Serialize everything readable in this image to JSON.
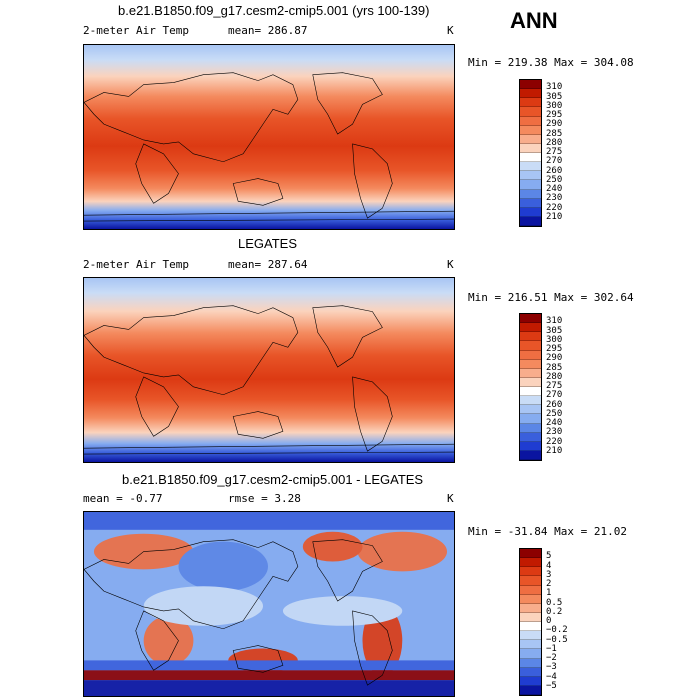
{
  "season": "ANN",
  "panels": [
    {
      "id": "model",
      "title": "b.e21.B1850.f09_g17.cesm2-cmip5.001 (yrs 100-139)",
      "left_label": "2-meter Air Temp",
      "center_label": "mean= 286.87",
      "right_label": "K",
      "minmax": "Min = 219.38 Max = 304.08",
      "colorbar": {
        "labels": [
          "310",
          "305",
          "300",
          "295",
          "290",
          "285",
          "280",
          "275",
          "270",
          "260",
          "250",
          "240",
          "230",
          "220",
          "210"
        ],
        "colors": [
          "#8c0000",
          "#c11a00",
          "#dc3a13",
          "#e85528",
          "#ef6e42",
          "#f48a5e",
          "#f8ad8c",
          "#fbd3bd",
          "#ffffff",
          "#c9dcf6",
          "#a8c5f4",
          "#86acf0",
          "#5b86e6",
          "#3a5fdc",
          "#1f3cd1",
          "#0a14a0"
        ]
      }
    },
    {
      "id": "obs",
      "title": "LEGATES",
      "left_label": "2-meter Air Temp",
      "center_label": "mean= 287.64",
      "right_label": "K",
      "minmax": "Min = 216.51 Max = 302.64",
      "colorbar": {
        "labels": [
          "310",
          "305",
          "300",
          "295",
          "290",
          "285",
          "280",
          "275",
          "270",
          "260",
          "250",
          "240",
          "230",
          "220",
          "210"
        ],
        "colors": [
          "#8c0000",
          "#c11a00",
          "#dc3a13",
          "#e85528",
          "#ef6e42",
          "#f48a5e",
          "#f8ad8c",
          "#fbd3bd",
          "#ffffff",
          "#c9dcf6",
          "#a8c5f4",
          "#86acf0",
          "#5b86e6",
          "#3a5fdc",
          "#1f3cd1",
          "#0a14a0"
        ]
      }
    },
    {
      "id": "diff",
      "title": "b.e21.B1850.f09_g17.cesm2-cmip5.001 - LEGATES",
      "left_label": "mean =   -0.77",
      "center_label": "rmse =    3.28",
      "right_label": "K",
      "minmax": "Min = -31.84 Max =  21.02",
      "colorbar": {
        "labels": [
          "5",
          "4",
          "3",
          "2",
          "1",
          "0.5",
          "0.2",
          "0",
          "−0.2",
          "−0.5",
          "−1",
          "−2",
          "−3",
          "−4",
          "−5"
        ],
        "colors": [
          "#8c0000",
          "#c11a00",
          "#dc3a13",
          "#e85528",
          "#ef6e42",
          "#f48a5e",
          "#f8ad8c",
          "#fbd3bd",
          "#ffffff",
          "#c9dcf6",
          "#a8c5f4",
          "#86acf0",
          "#5b86e6",
          "#3a5fdc",
          "#1f3cd1",
          "#0a14a0"
        ]
      }
    }
  ]
}
